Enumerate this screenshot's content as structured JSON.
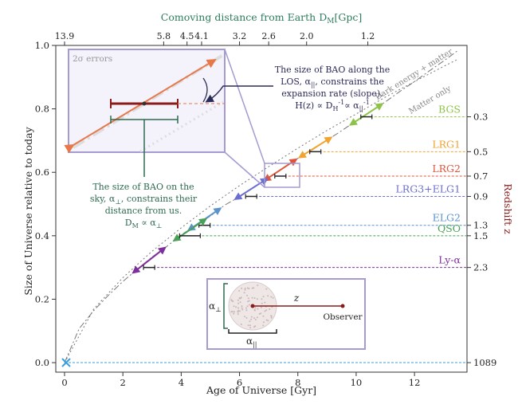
{
  "chart_data": {
    "type": "line",
    "top_axis_title": "Comoving distance from Earth D",
    "top_axis_title_sub": "M",
    "top_axis_title_unit": "[Gpc]",
    "top_ticks": [
      {
        "label": "13.9",
        "t": 0.0
      },
      {
        "label": "5.8",
        "t": 3.4
      },
      {
        "label": "4.5",
        "t": 4.2
      },
      {
        "label": "4.1",
        "t": 4.7
      },
      {
        "label": "3.2",
        "t": 6.0
      },
      {
        "label": "2.6",
        "t": 7.0
      },
      {
        "label": "2.0",
        "t": 8.3
      },
      {
        "label": "1.2",
        "t": 10.4
      }
    ],
    "xlabel": "Age of Universe [Gyr]",
    "ylabel": "Size of Universe relative to today",
    "right_label": "Redshift z",
    "xlim": [
      -0.3,
      13.8
    ],
    "ylim": [
      -0.03,
      1.0
    ],
    "x_ticks": [
      0,
      2,
      4,
      6,
      8,
      10,
      12
    ],
    "y_ticks": [
      "0.0",
      "0.2",
      "0.4",
      "0.6",
      "0.8",
      "1.0"
    ],
    "series": [
      {
        "name": "Dark energy + matter",
        "x": [
          0,
          0.5,
          1.0,
          1.5,
          2.0,
          2.5,
          3.0,
          3.5,
          4.0,
          4.5,
          5.0,
          5.5,
          6.0,
          6.5,
          7.0,
          7.5,
          8.0,
          8.5,
          9.0,
          9.5,
          10.0,
          10.5,
          11.0,
          11.5,
          12.0,
          12.5,
          13.0,
          13.5
        ],
        "y": [
          0,
          0.107,
          0.164,
          0.212,
          0.256,
          0.295,
          0.333,
          0.366,
          0.403,
          0.432,
          0.462,
          0.497,
          0.523,
          0.553,
          0.583,
          0.614,
          0.644,
          0.671,
          0.701,
          0.731,
          0.762,
          0.792,
          0.822,
          0.855,
          0.886,
          0.919,
          0.951,
          0.985
        ],
        "color": "#777777"
      },
      {
        "name": "Matter only",
        "x": [
          0,
          1,
          2,
          3,
          4,
          5,
          6,
          7,
          8,
          9,
          10,
          11,
          12,
          13,
          13.5
        ],
        "y": [
          0,
          0.169,
          0.268,
          0.351,
          0.425,
          0.494,
          0.558,
          0.618,
          0.676,
          0.732,
          0.784,
          0.837,
          0.886,
          0.934,
          0.957
        ],
        "color": "#777777"
      }
    ],
    "tracers": [
      {
        "name": "BGS",
        "z": "0.3",
        "y": 0.775,
        "t": 10.35,
        "color": "#8ec349"
      },
      {
        "name": "LRG1",
        "z": "0.5",
        "y": 0.665,
        "t": 8.6,
        "color": "#f0a431"
      },
      {
        "name": "LRG2",
        "z": "0.7",
        "y": 0.588,
        "t": 7.4,
        "color": "#e0553a"
      },
      {
        "name": "LRG3+ELG1",
        "z": "0.9",
        "y": 0.524,
        "t": 6.4,
        "color": "#6b6fd1"
      },
      {
        "name": "ELG2",
        "z": "1.3",
        "y": 0.433,
        "t": 4.8,
        "color": "#5b93cc"
      },
      {
        "name": "QSO",
        "z": "1.5",
        "y": 0.4,
        "t": 4.3,
        "color": "#4aa056"
      },
      {
        "name": "Ly-α",
        "z": "2.3",
        "y": 0.3,
        "t": 2.9,
        "color": "#7f2f9b"
      }
    ],
    "cmb": {
      "z": "1089",
      "y": 0.0,
      "t": 0.0,
      "color": "#3a9ee0"
    },
    "inset_label": "2σ errors",
    "annotation_parallel": [
      "The size of BAO along the",
      "LOS, α",
      ", constrains the",
      "expansion rate (slope).",
      "H(z) ∝ D",
      "∝ α"
    ],
    "annotation_perp": [
      "The size of BAO on the",
      "sky, α",
      ", constrains their",
      "distance from us.",
      "D",
      "∝ α"
    ],
    "diagram": {
      "perp": "α",
      "par": "α",
      "z": "z",
      "observer": "Observer"
    }
  }
}
